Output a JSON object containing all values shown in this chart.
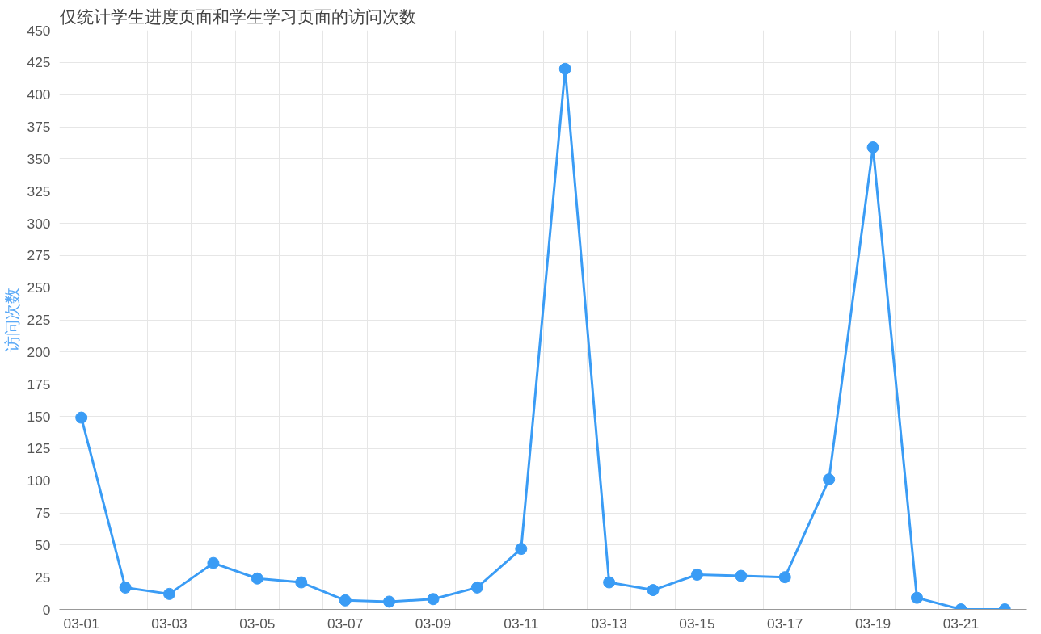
{
  "chart_data": {
    "type": "line",
    "title": "仅统计学生进度页面和学生学习页面的访问次数",
    "ylabel": "访问次数",
    "categories": [
      "03-01",
      null,
      "03-03",
      null,
      "03-05",
      null,
      "03-07",
      null,
      "03-09",
      null,
      "03-11",
      null,
      "03-13",
      null,
      "03-15",
      null,
      "03-17",
      null,
      "03-19",
      null,
      "03-21",
      null
    ],
    "series": [
      {
        "color": "#3a9cf5",
        "values": [
          149,
          17,
          12,
          36,
          24,
          21,
          7,
          6,
          8,
          17,
          47,
          420,
          21,
          15,
          27,
          26,
          25,
          101,
          359,
          9,
          0,
          0
        ]
      }
    ],
    "ylim": [
      0,
      450
    ],
    "yticks": [
      0,
      25,
      50,
      75,
      100,
      125,
      150,
      175,
      200,
      225,
      250,
      275,
      300,
      325,
      350,
      375,
      400,
      425,
      450
    ],
    "grid": true,
    "marker": "circle",
    "line_style": "solid"
  }
}
